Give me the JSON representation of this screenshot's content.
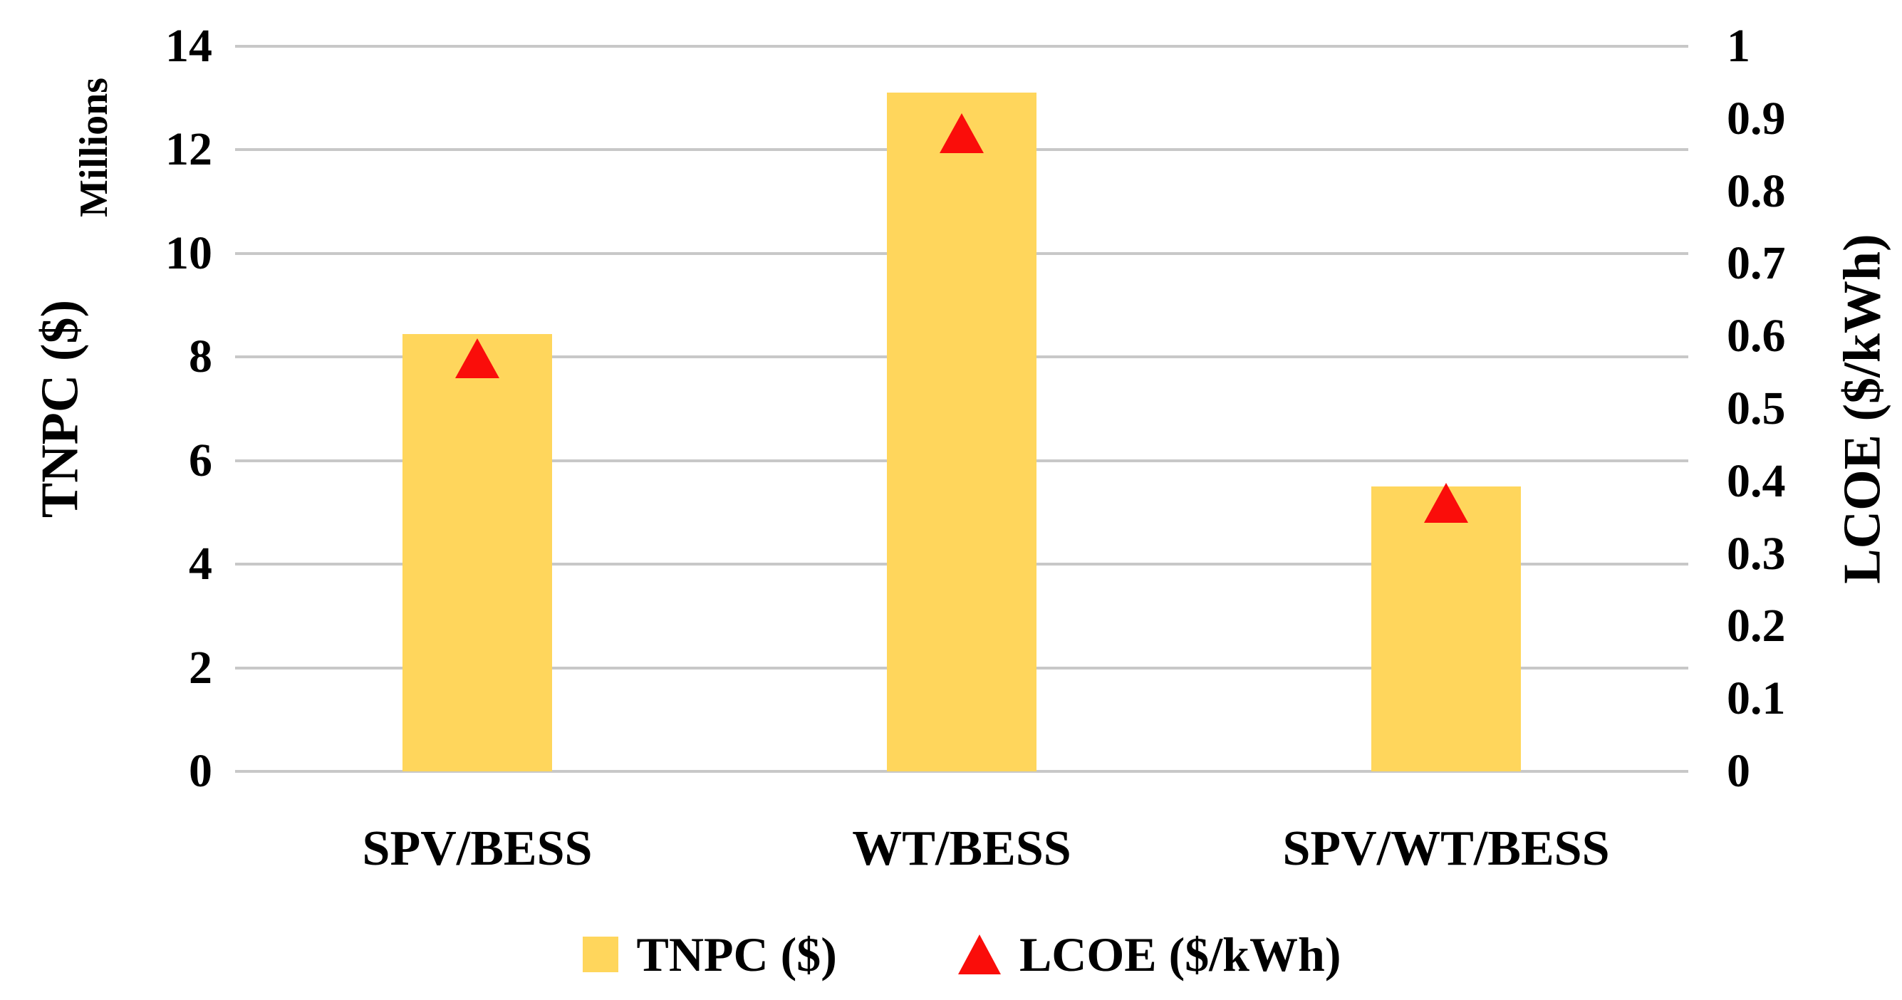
{
  "chart_data": {
    "type": "bar",
    "title": "",
    "categories": [
      "SPV/BESS",
      "WT/BESS",
      "SPV/WT/BESS"
    ],
    "series": [
      {
        "name": "TNPC ($)",
        "type": "bar",
        "axis": "left",
        "values": [
          8.45,
          13.1,
          5.5
        ],
        "color": "#FFD65C"
      },
      {
        "name": "LCOE ($/kWh)",
        "type": "scatter",
        "axis": "right",
        "values": [
          0.57,
          0.88,
          0.37
        ],
        "marker": "triangle-up",
        "color": "#FA0D0A"
      }
    ],
    "left_axis": {
      "title": "TNPC ($)",
      "units": "Millions",
      "min": 0,
      "max": 14,
      "tick_step": 2,
      "tick_labels": [
        "14",
        "12",
        "10",
        "8",
        "6",
        "4",
        "2",
        "0"
      ]
    },
    "right_axis": {
      "title": "LCOE ($/kWh)",
      "min": 0,
      "max": 1,
      "tick_step": 0.1,
      "tick_labels": [
        "1",
        "0.9",
        "0.8",
        "0.7",
        "0.6",
        "0.5",
        "0.4",
        "0.3",
        "0.2",
        "0.1",
        "0"
      ]
    },
    "legend": {
      "position": "bottom",
      "entries": [
        "TNPC ($)",
        "LCOE ($/kWh)"
      ]
    },
    "grid": "horizontal",
    "colors": {
      "bar": "#FFD65C",
      "marker": "#FA0D0A",
      "gridline": "#C8C8C8",
      "text": "#000000",
      "background": "#FFFFFF"
    }
  }
}
